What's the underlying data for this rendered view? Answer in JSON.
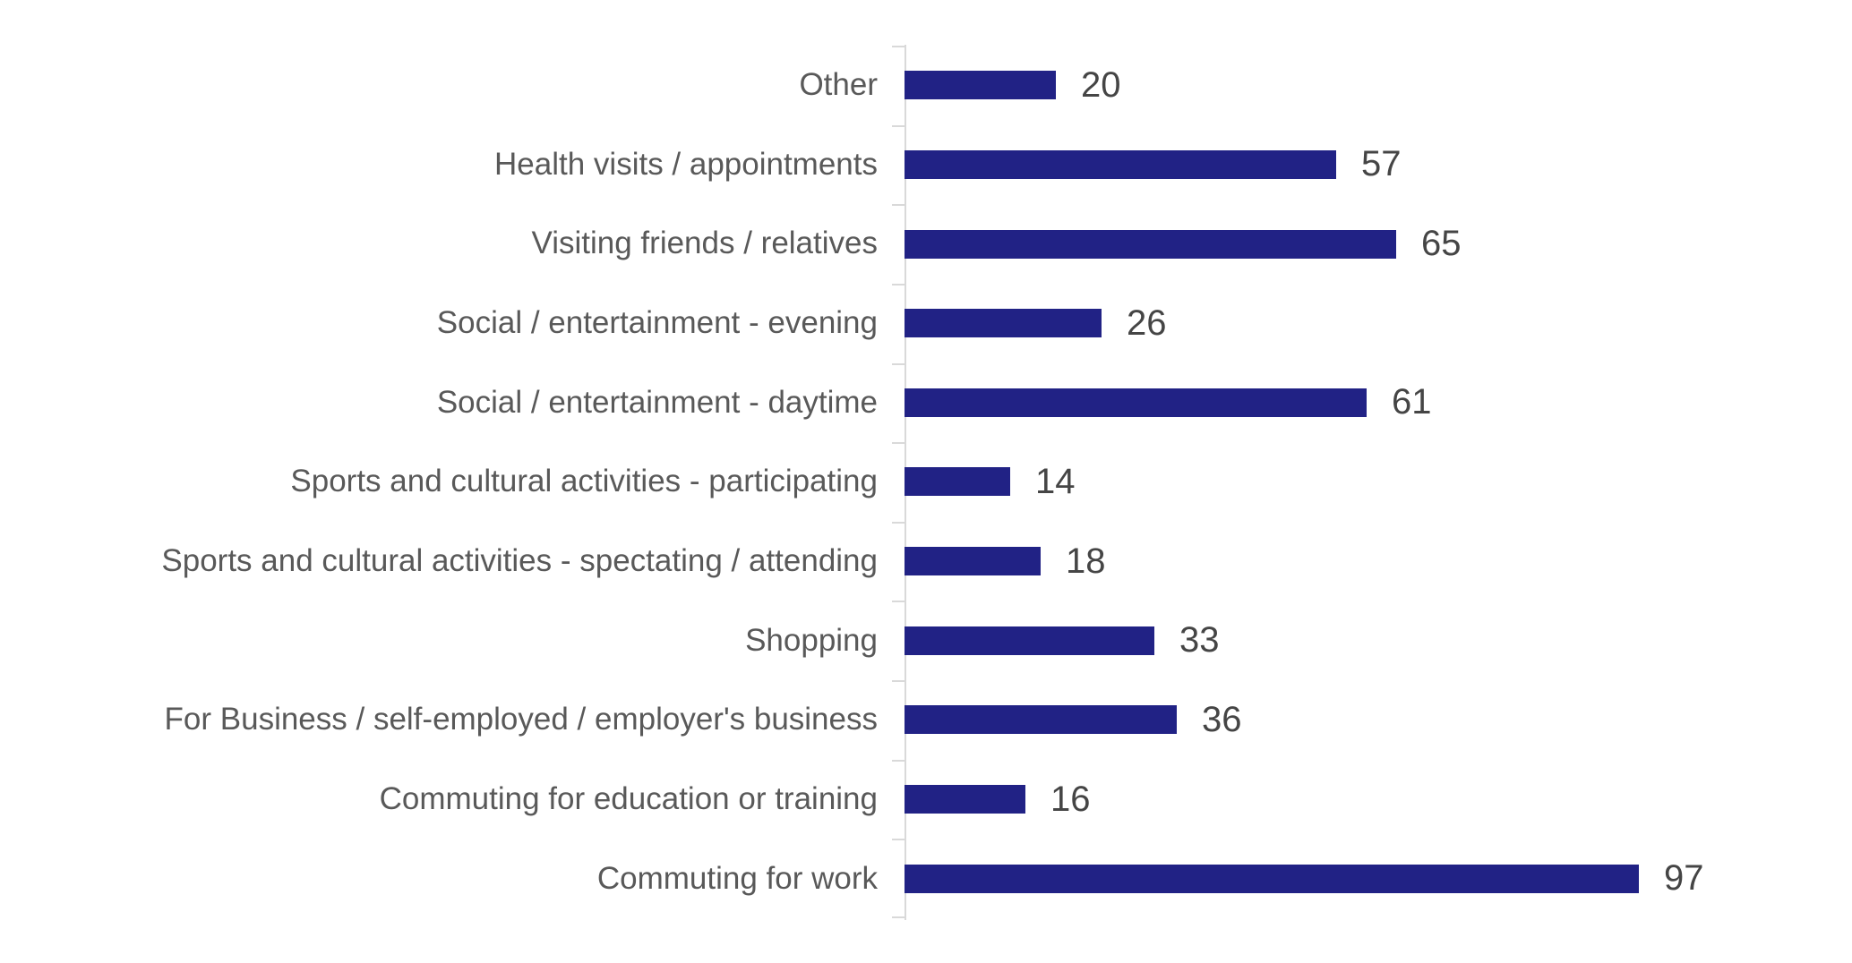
{
  "chart_data": {
    "type": "bar",
    "orientation": "horizontal",
    "title": "",
    "xlabel": "",
    "ylabel": "",
    "categories": [
      "Other",
      "Health visits / appointments",
      "Visiting friends / relatives",
      "Social / entertainment - evening",
      "Social / entertainment - daytime",
      "Sports and cultural activities - participating",
      "Sports and cultural activities - spectating / attending",
      "Shopping",
      "For Business / self-employed / employer's business",
      "Commuting for education or training",
      "Commuting for work"
    ],
    "values": [
      20,
      57,
      65,
      26,
      61,
      14,
      18,
      33,
      36,
      16,
      97
    ],
    "value_label_position": "end-of-bar",
    "xlim": [
      0,
      110
    ],
    "grid": false,
    "legend": "none",
    "bar_color": "#212285",
    "category_label_color": "#595959",
    "value_label_color": "#454545",
    "axis_color": "#D9D9D9"
  }
}
